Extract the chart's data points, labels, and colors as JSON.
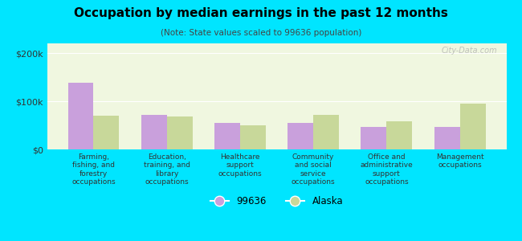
{
  "title": "Occupation by median earnings in the past 12 months",
  "subtitle": "(Note: State values scaled to 99636 population)",
  "categories": [
    "Farming,\nfishing, and\nforestry\noccupations",
    "Education,\ntraining, and\nlibrary\noccupations",
    "Healthcare\nsupport\noccupations",
    "Community\nand social\nservice\noccupations",
    "Office and\nadministrative\nsupport\noccupations",
    "Management\noccupations"
  ],
  "values_99636": [
    138000,
    72000,
    55000,
    55000,
    47000,
    47000
  ],
  "values_alaska": [
    70000,
    68000,
    50000,
    72000,
    58000,
    95000
  ],
  "color_99636": "#c9a0dc",
  "color_alaska": "#c8d89a",
  "background_outer": "#00e5ff",
  "background_inner": "#f0f7e0",
  "yticks": [
    0,
    100000,
    200000
  ],
  "ytick_labels": [
    "$0",
    "$100k",
    "$200k"
  ],
  "ylim": [
    0,
    220000
  ],
  "legend_label_99636": "99636",
  "legend_label_alaska": "Alaska",
  "watermark": "City-Data.com"
}
